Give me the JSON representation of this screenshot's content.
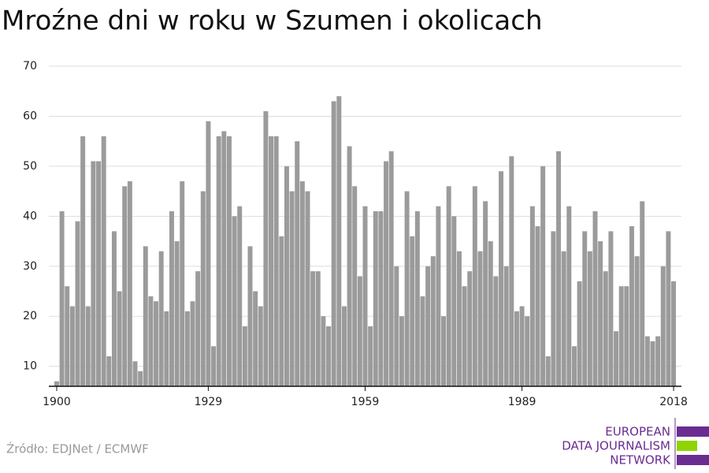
{
  "chart_data": {
    "type": "bar",
    "title": "Mroźne dni w roku w Szumen i okolicach",
    "source": "Źródło: EDJNet / ECMWF",
    "logo": [
      "EUROPEAN",
      "DATA JOURNALISM",
      "NETWORK"
    ],
    "color": "#9b9b9b",
    "grid": true,
    "x": [
      1900,
      1901,
      1902,
      1903,
      1904,
      1905,
      1906,
      1907,
      1908,
      1909,
      1910,
      1911,
      1912,
      1913,
      1914,
      1915,
      1916,
      1917,
      1918,
      1919,
      1920,
      1921,
      1922,
      1923,
      1924,
      1925,
      1926,
      1927,
      1928,
      1929,
      1930,
      1931,
      1932,
      1933,
      1934,
      1935,
      1936,
      1937,
      1938,
      1939,
      1940,
      1941,
      1942,
      1943,
      1944,
      1945,
      1946,
      1947,
      1948,
      1949,
      1950,
      1951,
      1952,
      1953,
      1954,
      1955,
      1956,
      1957,
      1958,
      1959,
      1960,
      1961,
      1962,
      1963,
      1964,
      1965,
      1966,
      1967,
      1968,
      1969,
      1970,
      1971,
      1972,
      1973,
      1974,
      1975,
      1976,
      1977,
      1978,
      1979,
      1980,
      1981,
      1982,
      1983,
      1984,
      1985,
      1986,
      1987,
      1988,
      1989,
      1990,
      1991,
      1992,
      1993,
      1994,
      1995,
      1996,
      1997,
      1998,
      1999,
      2000,
      2001,
      2002,
      2003,
      2004,
      2005,
      2006,
      2007,
      2008,
      2009,
      2010,
      2011,
      2012,
      2013,
      2014,
      2015,
      2016,
      2017,
      2018
    ],
    "values": [
      7,
      41,
      26,
      22,
      39,
      56,
      22,
      51,
      51,
      56,
      12,
      37,
      25,
      46,
      47,
      11,
      9,
      34,
      24,
      23,
      33,
      21,
      41,
      35,
      47,
      21,
      23,
      29,
      45,
      59,
      14,
      56,
      57,
      56,
      40,
      42,
      18,
      34,
      25,
      22,
      61,
      56,
      56,
      36,
      50,
      45,
      55,
      47,
      45,
      29,
      29,
      20,
      18,
      63,
      64,
      22,
      54,
      46,
      28,
      42,
      18,
      41,
      41,
      51,
      53,
      30,
      20,
      45,
      36,
      41,
      24,
      30,
      32,
      42,
      20,
      46,
      40,
      33,
      26,
      29,
      46,
      33,
      43,
      35,
      28,
      49,
      30,
      52,
      21,
      22,
      20,
      42,
      38,
      50,
      12,
      37,
      53,
      33,
      42,
      14,
      27,
      37,
      33,
      41,
      35,
      29,
      37,
      17,
      26,
      26,
      38,
      32,
      43,
      16,
      15,
      16,
      30,
      37,
      27
    ],
    "xlim": [
      1898.5,
      2019.5
    ],
    "xticks": [
      1900,
      1929,
      1959,
      1989,
      2018
    ],
    "ylim": [
      6,
      70
    ],
    "yticks": [
      10,
      20,
      30,
      40,
      50,
      60,
      70
    ]
  }
}
